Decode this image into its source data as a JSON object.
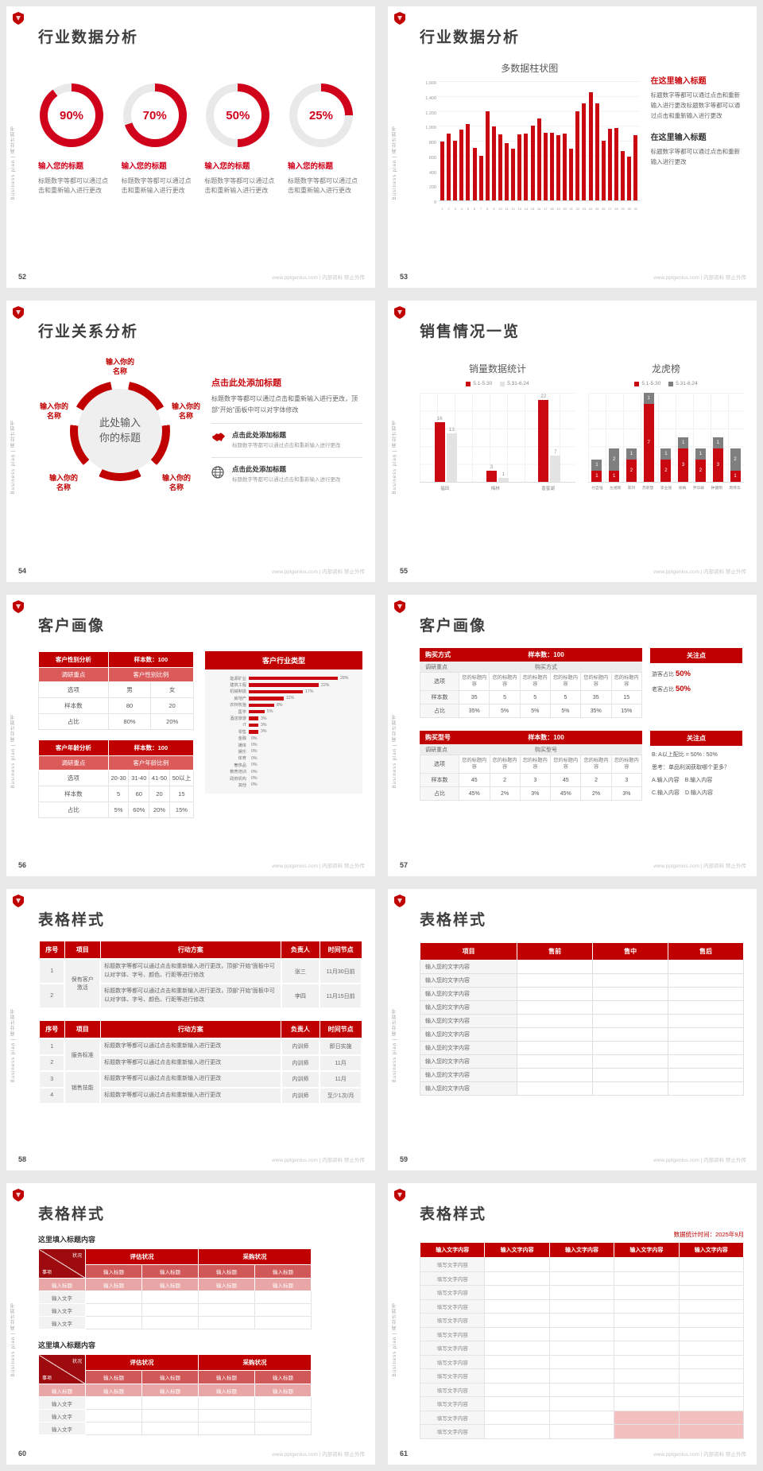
{
  "theme": {
    "accent": "#C00000",
    "chart_red": "#C9090F",
    "donut_red": "#D0021B",
    "light_gray": "#E9E9E9",
    "pink": "#E8A6A6"
  },
  "common": {
    "sidebar_text": "Business plan | 商业计划书",
    "footer_text": "www.pptgenius.com | 内部资料 禁止外传",
    "brand_icon": "shield-logo-icon"
  },
  "chart_data": [
    {
      "type": "bar",
      "slide": "53",
      "title": "多数据柱状图",
      "x": [
        "1",
        "2",
        "3",
        "4",
        "5",
        "6",
        "7",
        "8",
        "9",
        "10",
        "11",
        "12",
        "13",
        "14",
        "15",
        "16",
        "17",
        "18",
        "19",
        "20",
        "21",
        "22",
        "23",
        "24",
        "25",
        "26",
        "27",
        "28",
        "29",
        "30",
        "31"
      ],
      "values": [
        790,
        900,
        800,
        950,
        1020,
        700,
        600,
        1200,
        990,
        890,
        770,
        690,
        890,
        900,
        1000,
        1100,
        905,
        905,
        880,
        900,
        690,
        1195,
        1300,
        1450,
        1300,
        800,
        960,
        970,
        660,
        590,
        880
      ],
      "ylim": [
        0,
        1600
      ],
      "yticks": [
        "1,600",
        "1,400",
        "1,200",
        "1,000",
        "800",
        "600",
        "400",
        "200",
        "0"
      ],
      "bar_color": "#C9090F",
      "grid": true,
      "legend_position": "none"
    },
    {
      "type": "grouped-bar",
      "slide": "55",
      "title": "销量数据统计",
      "categories": [
        "福田",
        "梅林",
        "香蜜湖"
      ],
      "series": [
        {
          "name": "5.1-5.30",
          "values": [
            16,
            3,
            22
          ]
        },
        {
          "name": "5.31-6.24",
          "values": [
            13,
            1,
            7
          ]
        }
      ],
      "colors": [
        "#C9090F",
        "#E3E3E3"
      ],
      "ylim": [
        0,
        24
      ],
      "legend_position": "top"
    },
    {
      "type": "stacked-bar",
      "slide": "55",
      "title": "龙虎榜",
      "categories": [
        "付自强",
        "左湘南",
        "陈玲",
        "苏新慧",
        "李业丽",
        "易梅",
        "尹华峰",
        "钟健明",
        "周伟华"
      ],
      "series": [
        {
          "name": "5.1-5.30",
          "values": [
            1,
            1,
            2,
            7,
            2,
            3,
            2,
            3,
            1
          ]
        },
        {
          "name": "5.31-6.24",
          "values": [
            1,
            2,
            1,
            1,
            1,
            1,
            1,
            1,
            2
          ]
        }
      ],
      "colors": [
        "#C9090F",
        "#7F7F7F"
      ],
      "ylim": [
        0,
        8
      ],
      "legend_position": "top"
    },
    {
      "type": "hbar",
      "slide": "56",
      "title": "客户行业类型",
      "unit": "%",
      "categories": [
        "能源矿业",
        "建筑工程",
        "机械制造",
        "房地产",
        "农林牧渔",
        "医学",
        "酒店旅游",
        "IT",
        "零售",
        "金融",
        "媒体",
        "娱乐",
        "体育",
        "奢侈品",
        "教育培训",
        "政府机构",
        "其他"
      ],
      "values": [
        28,
        22,
        17,
        11,
        8,
        5,
        3,
        3,
        3,
        0,
        0,
        0,
        0,
        0,
        0,
        0,
        0
      ],
      "bar_color": "#C9090F"
    }
  ],
  "slides": {
    "s52": {
      "page": "52",
      "title": "行业数据分析",
      "item_title": "输入您的标题",
      "item_desc": "标题数字等都可以通过点击和重新输入进行更改",
      "items": [
        {
          "pct": 90
        },
        {
          "pct": 70
        },
        {
          "pct": 50
        },
        {
          "pct": 25
        }
      ]
    },
    "s53": {
      "page": "53",
      "title": "行业数据分析",
      "h1": "在这里输入标题",
      "p1": "标题数字等都可以通过点击和重新输入进行更改标题数字等都可以通过点击和重新输入进行更改",
      "h2": "在这里输入标题",
      "p2": "标题数字等都可以通过点击和重新输入进行更改"
    },
    "s54": {
      "page": "54",
      "title": "行业关系分析",
      "center": "此处输入你的标题",
      "node_labels": [
        "输入你的名称",
        "输入你的名称",
        "输入你的名称",
        "输入你的名称",
        "输入你的名称"
      ],
      "h1": "点击此处添加标题",
      "p1": "标题数字等都可以通过点击和重新输入进行更改，顶部“开始”面板中可以对字体修改",
      "items": [
        {
          "icon": "china-map-icon",
          "title": "点击此处添加标题",
          "desc": "标题数字等都可以通过点击和重新输入进行更改"
        },
        {
          "icon": "globe-icon",
          "title": "点击此处添加标题",
          "desc": "标题数字等都可以通过点击和重新输入进行更改"
        }
      ]
    },
    "s55": {
      "page": "55",
      "title": "销售情况一览"
    },
    "s56": {
      "page": "56",
      "title": "客户画像",
      "tableA": {
        "cols": 3,
        "header": [
          "客户性别分析",
          "样本数：100"
        ],
        "sub": [
          "调研重点",
          "客户性别比例"
        ],
        "rows": [
          [
            "选项",
            "男",
            "女"
          ],
          [
            "样本数",
            "80",
            "20"
          ],
          [
            "占比",
            "80%",
            "20%"
          ]
        ]
      },
      "tableB": {
        "cols": 5,
        "header": [
          "客户年龄分析",
          "样本数：100"
        ],
        "sub": [
          "调研重点",
          "客户年龄比例"
        ],
        "rows": [
          [
            "选项",
            "20-30",
            "31-40",
            "41-50",
            "50以上"
          ],
          [
            "样本数",
            "5",
            "60",
            "20",
            "15"
          ],
          [
            "占比",
            "5%",
            "60%",
            "20%",
            "15%"
          ]
        ]
      }
    },
    "s57": {
      "page": "57",
      "title": "客户画像",
      "blockA": {
        "header_left": "购买方式",
        "header_right": "样本数：100",
        "sub_left": "调研重点",
        "sub_right": "购买方式",
        "row_labels": [
          "选项",
          "样本数",
          "占比"
        ],
        "option_cols": [
          "您的标题内容",
          "您的标题内容",
          "您的标题内容",
          "您的标题内容",
          "您的标题内容",
          "您的标题内容"
        ],
        "samples": [
          "35",
          "5",
          "5",
          "5",
          "35",
          "15"
        ],
        "ratios": [
          "35%",
          "5%",
          "5%",
          "5%",
          "35%",
          "15%"
        ]
      },
      "calloutA": {
        "title": "关注点",
        "lines": [
          [
            "游客占比 ",
            "50%"
          ],
          [
            "老客占比 ",
            "50%"
          ]
        ]
      },
      "blockB": {
        "header_left": "购买型号",
        "header_right": "样本数：100",
        "sub_left": "调研重点",
        "sub_right": "购买型号",
        "row_labels": [
          "选项",
          "样本数",
          "占比"
        ],
        "option_cols": [
          "您的标题内容",
          "您的标题内容",
          "您的标题内容",
          "您的标题内容",
          "您的标题内容",
          "您的标题内容"
        ],
        "samples": [
          "45",
          "2",
          "3",
          "45",
          "2",
          "3"
        ],
        "ratios": [
          "45%",
          "2%",
          "3%",
          "45%",
          "2%",
          "3%"
        ]
      },
      "calloutB": {
        "title": "关注点",
        "lines": [
          "B: A以上配比 = 50% : 50%",
          "思考：单品利润获取哪个更多？",
          "A.输入内容　B.输入内容",
          "C.输入内容　D.输入内容"
        ]
      }
    },
    "s58": {
      "page": "58",
      "title": "表格样式",
      "tableA": {
        "headers": [
          "序号",
          "项目",
          "行动方案",
          "负责人",
          "时间节点"
        ],
        "widths": [
          "8%",
          "11%",
          "56%",
          "12%",
          "13%"
        ],
        "groups": [
          {
            "label": "保有客户激活",
            "start": 0,
            "span": 2
          }
        ],
        "rows": [
          [
            "1",
            "标题数字等都可以通过点击和重新输入进行更改，顶部“开始”面板中可以对字体、字号、颜色、行距等进行修改",
            "张三",
            "11月30日前"
          ],
          [
            "2",
            "标题数字等都可以通过点击和重新输入进行更改，顶部“开始”面板中可以对字体、字号、颜色、行距等进行修改",
            "李四",
            "11月15日前"
          ]
        ]
      },
      "tableB": {
        "headers": [
          "序号",
          "项目",
          "行动方案",
          "负责人",
          "时间节点"
        ],
        "widths": [
          "8%",
          "11%",
          "56%",
          "12%",
          "13%"
        ],
        "groups": [
          {
            "label": "服务标准",
            "start": 0,
            "span": 2
          },
          {
            "label": "销售技能",
            "start": 2,
            "span": 2
          }
        ],
        "rows": [
          [
            "1",
            "标题数字等都可以通过点击和重新输入进行更改",
            "内训师",
            "即日实施"
          ],
          [
            "2",
            "标题数字等都可以通过点击和重新输入进行更改",
            "内训师",
            "11月"
          ],
          [
            "3",
            "标题数字等都可以通过点击和重新输入进行更改",
            "内训师",
            "11月"
          ],
          [
            "4",
            "标题数字等都可以通过点击和重新输入进行更改",
            "内训师",
            "至少1次/月"
          ]
        ]
      }
    },
    "s59": {
      "page": "59",
      "title": "表格样式",
      "headers": [
        "项目",
        "售前",
        "售中",
        "售后"
      ],
      "row_label": "输入您的文字内容",
      "row_count": 10
    },
    "s60": {
      "page": "60",
      "title": "表格样式",
      "section_title": "这里填入标题内容",
      "diag_top": "状况",
      "diag_bottom": "事项",
      "groups": [
        "评估状况",
        "采购状况"
      ],
      "sub_headers": [
        "输入标题",
        "输入标题",
        "输入标题",
        "输入标题"
      ],
      "pink_cells": [
        "输入标题",
        "输入标题",
        "输入标题",
        "输入标题",
        "输入标题"
      ],
      "body_label": "输入文字",
      "body_rows": 3
    },
    "s61": {
      "page": "61",
      "title": "表格样式",
      "note": "数据统计时间：2025年9月",
      "headers": [
        "输入文字内容",
        "输入文字内容",
        "输入文字内容",
        "输入文字内容",
        "输入文字内容"
      ],
      "row_label": "填写文字内容",
      "row_count": 13,
      "pink_rows": [
        11,
        12
      ],
      "pink_cols": [
        3,
        4
      ]
    }
  }
}
